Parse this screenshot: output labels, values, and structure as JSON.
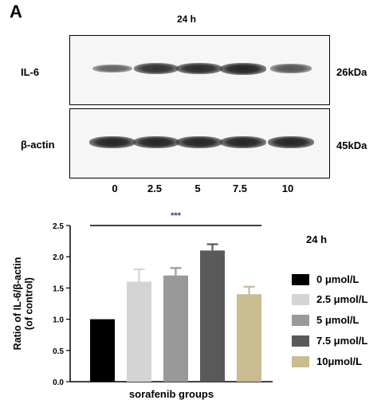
{
  "panel_label": "A",
  "blot": {
    "time_label": "24 h",
    "rows": [
      {
        "label": "IL-6",
        "kda": "26kDa",
        "intensity": [
          0.45,
          0.8,
          0.85,
          0.9,
          0.55
        ]
      },
      {
        "label": "β-actin",
        "kda": "45kDa",
        "intensity": [
          0.9,
          0.9,
          0.9,
          0.9,
          0.9
        ]
      }
    ],
    "lanes": [
      "0",
      "2.5",
      "5",
      "7.5",
      "10"
    ]
  },
  "chart_data": {
    "type": "bar",
    "title": "24 h",
    "xlabel": "sorafenib groups",
    "ylabel": "Ratio of IL-6/β-actin\n(of control)",
    "ylim": [
      0.0,
      2.5
    ],
    "yticks": [
      "0.0",
      "0.5",
      "1.0",
      "1.5",
      "2.0",
      "2.5"
    ],
    "categories": [
      "0 μmol/L",
      "2.5 μmol/L",
      "5 μmol/L",
      "7.5 μmol/L",
      "10μmol/L"
    ],
    "values": [
      1.0,
      1.6,
      1.7,
      2.1,
      1.4
    ],
    "errors": [
      0.0,
      0.2,
      0.12,
      0.1,
      0.12
    ],
    "colors": [
      "#000000",
      "#d4d4d4",
      "#999999",
      "#595959",
      "#c8bc90"
    ],
    "significance": "***",
    "significance_color": "#2b3a8c",
    "legend_position": "right"
  }
}
